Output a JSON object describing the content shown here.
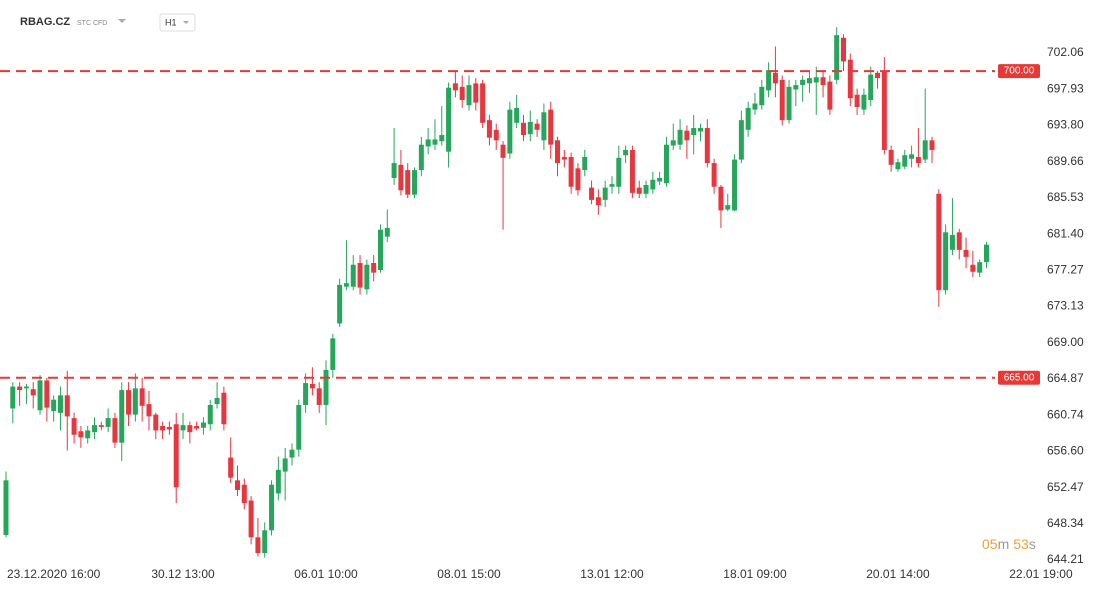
{
  "header": {
    "symbol": "RBAG.CZ",
    "tags": "STC CFD",
    "timeframe": "H1"
  },
  "countdown": {
    "minutes": "05",
    "minutes_unit": "m",
    "seconds": "53",
    "seconds_unit": "s"
  },
  "chart_data": {
    "type": "candlestick",
    "up_color": "#26a65b",
    "down_color": "#e8363f",
    "candles": {
      "open": [
        647.06,
        661.5,
        664.0,
        663.8,
        663.7,
        661.3,
        664.7,
        661.2,
        661,
        663,
        660.4,
        658.9,
        658.1,
        658.8,
        659.6,
        659.4,
        660.4,
        657.6,
        663.6,
        660.8,
        663.8,
        662,
        660.8,
        659.5,
        659.4,
        659.7,
        659,
        659.6,
        659.5,
        659.3,
        659.7,
        662,
        663.3,
        655.9,
        653.3,
        652.8,
        651,
        646.8,
        645,
        647.6,
        651.8,
        654.3,
        655.9,
        656.8,
        661.9,
        664.3,
        663.8,
        661.9,
        665.9,
        671.2,
        675.4,
        675.4,
        678.1,
        675.1,
        678.1,
        677.3,
        681.1,
        687.8,
        689.3,
        688.7,
        685.9,
        688.7,
        691.4,
        691.6,
        692,
        690.8,
        698.6,
        698.2,
        696.1,
        698.6,
        698.6,
        694.4,
        693.3,
        691.6,
        690.6,
        694.1,
        694.1,
        692.8,
        694,
        692.1,
        695.6,
        692.1,
        690.2,
        690.2,
        688.9,
        688.7,
        686.7,
        685.6,
        685.3,
        686.8,
        686.8,
        690.4,
        691,
        686.7,
        686,
        686.5,
        687.4,
        687.2,
        691.5,
        691.6,
        693.2,
        692.7,
        693.1,
        693.5,
        689.5,
        686.8,
        684.2,
        684.1,
        689.9,
        693.3,
        695.6,
        696.1,
        697.8,
        699.8,
        699,
        694.4,
        697.9,
        698.4,
        698.6,
        698.7,
        699.3,
        698.8,
        699,
        703.8,
        701.3,
        697.3,
        695.6,
        696.7,
        699.8,
        699.9,
        691,
        688.8,
        689.1,
        690,
        690.2,
        689.9,
        692.1,
        686,
        675,
        679.6,
        681.6,
        679.6,
        677.9,
        677,
        678.2
      ],
      "high": [
        654.3,
        664.5,
        664.5,
        664.3,
        664.5,
        665.3,
        665,
        663,
        664,
        665.8,
        661,
        659.5,
        659.5,
        660.5,
        660,
        661.5,
        661,
        664.5,
        664.5,
        665.5,
        665,
        663.5,
        661,
        660,
        660,
        661,
        661,
        660,
        660,
        660.5,
        662.5,
        664.5,
        664,
        658.2,
        655,
        653.5,
        651.5,
        649,
        648.5,
        653.3,
        656,
        657,
        657.5,
        662.5,
        665.5,
        666.2,
        664.5,
        667,
        670,
        676.3,
        680.7,
        679,
        679,
        678.5,
        679,
        682.5,
        684.2,
        693.5,
        691,
        689.5,
        689,
        692.5,
        693.5,
        694.5,
        696,
        698.7,
        700,
        699.5,
        699.5,
        699.2,
        699,
        695,
        694,
        692,
        696.5,
        697.3,
        695,
        695.5,
        694.5,
        696.3,
        696.5,
        692.5,
        691,
        690.7,
        689.5,
        691,
        687.5,
        686.5,
        687.5,
        688,
        691.5,
        691.5,
        691.5,
        687.5,
        687.5,
        688.5,
        688.5,
        692.5,
        694,
        694.5,
        693.8,
        695,
        694,
        694.5,
        690,
        687,
        686,
        690.5,
        695.5,
        696.5,
        697.5,
        699,
        701,
        702.8,
        699.5,
        699,
        699,
        699.5,
        700,
        700.5,
        700,
        699.5,
        705,
        704.2,
        702,
        698,
        698,
        700.5,
        700,
        701.6,
        691.5,
        690,
        691,
        691.5,
        693.5,
        698,
        692.5,
        686.5,
        682.5,
        685.5,
        682,
        681,
        679.5,
        678.5,
        680.5
      ],
      "low": [
        646.8,
        659.8,
        661.8,
        662,
        661.5,
        660.8,
        660,
        660,
        659,
        656.7,
        657.5,
        657,
        657.5,
        658,
        659,
        658.8,
        657,
        655.5,
        659.5,
        660,
        660,
        659,
        658,
        658,
        658.5,
        650.7,
        658,
        657.5,
        659,
        658.5,
        659,
        661.5,
        659,
        653,
        651.5,
        650,
        646,
        644.6,
        644.5,
        647,
        651,
        651,
        655,
        656,
        661,
        663,
        661,
        659.6,
        665,
        670.8,
        675,
        675,
        674.5,
        674.5,
        676,
        677,
        680.5,
        687,
        685.8,
        685.5,
        685.5,
        688,
        690.5,
        691,
        691.5,
        689,
        697,
        695.8,
        695.5,
        695.5,
        693.5,
        691.5,
        691,
        681.9,
        690,
        693.5,
        692,
        692,
        692.5,
        691,
        690,
        688,
        689,
        686,
        685.8,
        688,
        684.8,
        683.6,
        684.5,
        686,
        686,
        689.5,
        685.5,
        685.5,
        685.5,
        686,
        687,
        686.8,
        691,
        691,
        690,
        690.5,
        692,
        689,
        686,
        682.1,
        684,
        684,
        689.5,
        692.5,
        695,
        695.6,
        697,
        697,
        693.8,
        694,
        696,
        696.5,
        697.5,
        695,
        697,
        695,
        698.5,
        700,
        696,
        695,
        695,
        696,
        698,
        690.5,
        688.5,
        688.5,
        688.8,
        689,
        689,
        689.5,
        689.5,
        673.1,
        674.5,
        679,
        678.5,
        677.5,
        676.5,
        676.5,
        677.5
      ],
      "close": [
        653.3,
        664.0,
        663.6,
        664.0,
        663.0,
        664.7,
        661.6,
        662.5,
        663,
        660.6,
        658.5,
        658.2,
        659,
        659.6,
        659.4,
        660.4,
        657.6,
        663.6,
        660.8,
        663.8,
        661.8,
        660.6,
        659,
        659,
        659.1,
        652.5,
        659.6,
        658.8,
        659.2,
        659.9,
        661.9,
        662.7,
        659.7,
        653.6,
        652.2,
        650.7,
        646.8,
        645,
        647.6,
        652.8,
        654.5,
        655.8,
        656.8,
        661.9,
        664.4,
        663.8,
        661.9,
        665.9,
        669.5,
        675.6,
        675.8,
        677.9,
        675.3,
        677.9,
        677,
        681.9,
        682.1,
        689.5,
        686.4,
        685.9,
        688.7,
        691.6,
        692.2,
        692.2,
        692.7,
        698.1,
        697.8,
        696.7,
        698.4,
        696.4,
        694.1,
        692.4,
        692.1,
        690.1,
        695.6,
        695.8,
        692.7,
        694.2,
        693.3,
        695.3,
        691.6,
        689.5,
        689.9,
        686.8,
        686.4,
        690.2,
        685.3,
        684.7,
        686.7,
        687.1,
        690.1,
        691,
        686.1,
        686,
        687,
        687.6,
        687.8,
        691.6,
        692.1,
        693.3,
        692.1,
        693.5,
        693.5,
        689.5,
        686.8,
        684.1,
        684.7,
        689.9,
        694.4,
        695.8,
        696.3,
        698.2,
        700.1,
        698.6,
        694.4,
        698.2,
        698.4,
        699,
        699.2,
        699.3,
        698.4,
        695.6,
        704.1,
        701.1,
        696.9,
        695.9,
        697.3,
        699.6,
        699.2,
        691,
        689.3,
        689.6,
        690.4,
        690.5,
        689.5,
        692.1,
        691,
        675,
        681.6,
        681.3,
        679.6,
        678.8,
        677.1,
        678.2,
        680.2
      ]
    },
    "xlim": [
      -0.88,
      161.7
    ],
    "xticks": [
      {
        "value": 7,
        "label": "23.12.2020 16:00"
      },
      {
        "value": 26,
        "label": "30.12 13:00"
      },
      {
        "value": 47,
        "label": "06.01 10:00"
      },
      {
        "value": 68,
        "label": "08.01 15:00"
      },
      {
        "value": 89,
        "label": "13.01 12:00"
      },
      {
        "value": 110,
        "label": "18.01 09:00"
      },
      {
        "value": 131,
        "label": "20.01 14:00"
      },
      {
        "value": 152,
        "label": "22.01 19:00"
      }
    ],
    "ylim": [
      643.64,
      708.11
    ],
    "yticks": [
      702.06,
      697.93,
      {
        "value": 693.8,
        "label": "693.80"
      },
      689.66,
      685.53,
      {
        "value": 681.4,
        "label": "681.40"
      },
      677.27,
      673.13,
      {
        "value": 669,
        "label": "669.00"
      },
      664.87,
      660.74,
      {
        "value": 656.6,
        "label": "656.60"
      },
      652.47,
      648.34,
      644.21
    ],
    "levels": [
      {
        "value": 700,
        "label": "700.00"
      },
      {
        "value": 665,
        "label": "665.00"
      }
    ],
    "level_color": "#e53935",
    "grid": false
  }
}
